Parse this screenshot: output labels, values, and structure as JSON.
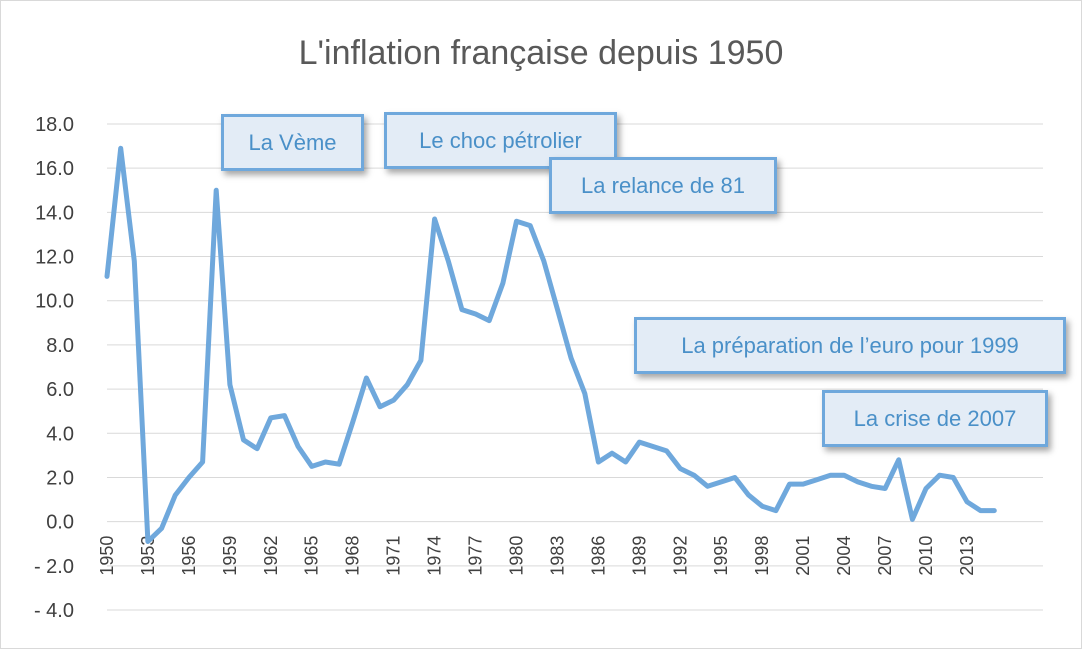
{
  "chart_data": {
    "type": "line",
    "title": "L'inflation française depuis 1950",
    "xlabel": "",
    "ylabel": "",
    "ylim": [
      -4,
      18
    ],
    "y_ticks": [
      "18.0",
      "16.0",
      "14.0",
      "12.0",
      "10.0",
      "8.0",
      "6.0",
      "4.0",
      "2.0",
      "0.0",
      "- 2.0",
      "- 4.0"
    ],
    "x_tick_labels": [
      "1950",
      "1953",
      "1956",
      "1959",
      "1962",
      "1965",
      "1968",
      "1971",
      "1974",
      "1977",
      "1980",
      "1983",
      "1986",
      "1989",
      "1992",
      "1995",
      "1998",
      "2001",
      "2004",
      "2007",
      "2010",
      "2013"
    ],
    "grid": true,
    "line_color": "#6fa8dc",
    "x": [
      1950,
      1951,
      1952,
      1953,
      1954,
      1955,
      1956,
      1957,
      1958,
      1959,
      1960,
      1961,
      1962,
      1963,
      1964,
      1965,
      1966,
      1967,
      1968,
      1969,
      1970,
      1971,
      1972,
      1973,
      1974,
      1975,
      1976,
      1977,
      1978,
      1979,
      1980,
      1981,
      1982,
      1983,
      1984,
      1985,
      1986,
      1987,
      1988,
      1989,
      1990,
      1991,
      1992,
      1993,
      1994,
      1995,
      1996,
      1997,
      1998,
      1999,
      2000,
      2001,
      2002,
      2003,
      2004,
      2005,
      2006,
      2007,
      2008,
      2009,
      2010,
      2011,
      2012,
      2013,
      2014,
      2015
    ],
    "values": [
      11.1,
      16.9,
      11.8,
      -0.9,
      -0.3,
      1.2,
      2.0,
      2.7,
      15.0,
      6.2,
      3.7,
      3.3,
      4.7,
      4.8,
      3.4,
      2.5,
      2.7,
      2.6,
      4.5,
      6.5,
      5.2,
      5.5,
      6.2,
      7.3,
      13.7,
      11.8,
      9.6,
      9.4,
      9.1,
      10.8,
      13.6,
      13.4,
      11.8,
      9.6,
      7.4,
      5.8,
      2.7,
      3.1,
      2.7,
      3.6,
      3.4,
      3.2,
      2.4,
      2.1,
      1.6,
      1.8,
      2.0,
      1.2,
      0.7,
      0.5,
      1.7,
      1.7,
      1.9,
      2.1,
      2.1,
      1.8,
      1.6,
      1.5,
      2.8,
      0.1,
      1.5,
      2.1,
      2.0,
      0.9,
      0.5,
      0.5
    ],
    "annotations": [
      "La Vème",
      "Le choc pétrolier",
      "La relance de 81",
      "La préparation de l’euro pour 1999",
      "La crise de 2007"
    ]
  }
}
